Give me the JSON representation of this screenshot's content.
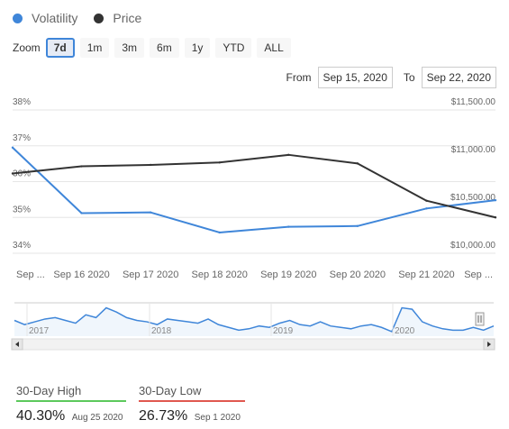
{
  "legend": [
    {
      "label": "Volatility",
      "color": "#3f86d9"
    },
    {
      "label": "Price",
      "color": "#333333"
    }
  ],
  "zoom": {
    "label": "Zoom",
    "buttons": [
      "7d",
      "1m",
      "3m",
      "6m",
      "1y",
      "YTD",
      "ALL"
    ],
    "active": "7d"
  },
  "range": {
    "from_label": "From",
    "from_value": "Sep 15, 2020",
    "to_label": "To",
    "to_value": "Sep 22, 2020"
  },
  "chart_data": {
    "type": "line",
    "x_tick_labels": [
      "Sep ...",
      "Sep 16 2020",
      "Sep 17 2020",
      "Sep 18 2020",
      "Sep 19 2020",
      "Sep 20 2020",
      "Sep 21 2020",
      "Sep ..."
    ],
    "y_left": {
      "ticks": [
        "34%",
        "35%",
        "36%",
        "37%",
        "38%"
      ],
      "range": [
        34,
        38
      ]
    },
    "y_right": {
      "ticks": [
        "$10,000.00",
        "$10,500.00",
        "$11,000.00",
        "$11,500.00"
      ],
      "range": [
        10000,
        11500
      ]
    },
    "series": [
      {
        "name": "Volatility",
        "axis": "left",
        "color": "#3f86d9",
        "x": [
          "Sep 15 2020",
          "Sep 16 2020",
          "Sep 17 2020",
          "Sep 18 2020",
          "Sep 19 2020",
          "Sep 20 2020",
          "Sep 21 2020",
          "Sep 22 2020"
        ],
        "values": [
          36.95,
          35.12,
          35.14,
          34.58,
          34.74,
          34.76,
          35.25,
          35.48
        ]
      },
      {
        "name": "Price",
        "axis": "right",
        "color": "#333333",
        "x": [
          "Sep 15 2020",
          "Sep 16 2020",
          "Sep 17 2020",
          "Sep 18 2020",
          "Sep 19 2020",
          "Sep 20 2020",
          "Sep 21 2020",
          "Sep 22 2020"
        ],
        "values": [
          10835,
          10910,
          10925,
          10950,
          11030,
          10940,
          10550,
          10375
        ]
      }
    ],
    "grid": true,
    "legend_position": "top-left",
    "navigator": {
      "year_labels": [
        "2017",
        "2018",
        "2019",
        "2020"
      ],
      "values": [
        0.5,
        0.35,
        0.45,
        0.55,
        0.6,
        0.5,
        0.4,
        0.7,
        0.6,
        0.95,
        0.8,
        0.6,
        0.5,
        0.45,
        0.35,
        0.55,
        0.5,
        0.45,
        0.4,
        0.55,
        0.35,
        0.25,
        0.15,
        0.2,
        0.3,
        0.25,
        0.4,
        0.5,
        0.35,
        0.3,
        0.45,
        0.3,
        0.25,
        0.2,
        0.3,
        0.35,
        0.25,
        0.1,
        0.95,
        0.9,
        0.45,
        0.3,
        0.2,
        0.15,
        0.15,
        0.25,
        0.15,
        0.3
      ]
    }
  },
  "stats": {
    "high": {
      "title": "30-Day High",
      "value": "40.30%",
      "date": "Aug 25 2020"
    },
    "low": {
      "title": "30-Day Low",
      "value": "26.73%",
      "date": "Sep 1 2020"
    }
  }
}
